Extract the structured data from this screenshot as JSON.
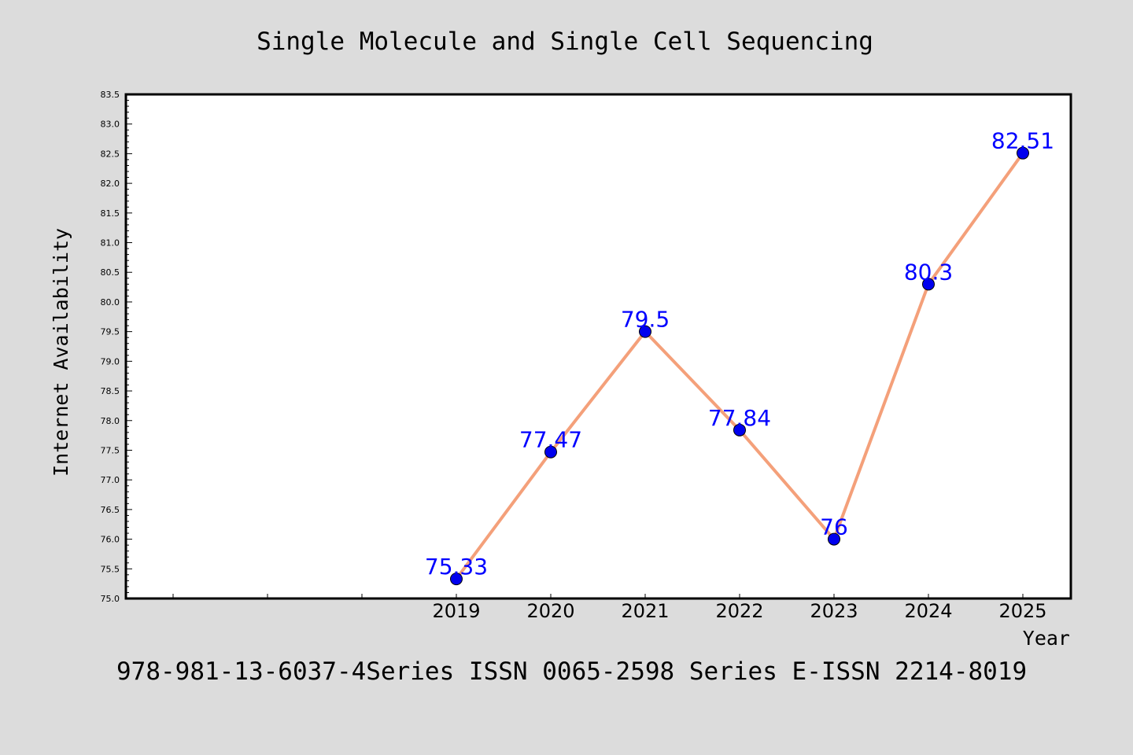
{
  "chart_data": {
    "type": "line",
    "title": "Single Molecule and Single Cell Sequencing",
    "xlabel": "Year",
    "ylabel": "Internet Availability",
    "x": [
      "2019",
      "2020",
      "2021",
      "2022",
      "2023",
      "2024",
      "2025"
    ],
    "series": [
      {
        "values": [
          75.33,
          77.47,
          79.5,
          77.84,
          76,
          80.3,
          82.51
        ],
        "data_labels": [
          "75.33",
          "77.47",
          "79.5",
          "77.84",
          "76",
          "80.3",
          "82.51"
        ],
        "line_color": "#f4a07a",
        "marker_color": "#0000ee"
      }
    ],
    "ylim": [
      75.0,
      83.5
    ],
    "yticks": [
      "75.0",
      "75.5",
      "76.0",
      "76.5",
      "77.0",
      "77.5",
      "78.0",
      "78.5",
      "79.0",
      "79.5",
      "80.0",
      "80.5",
      "81.0",
      "81.5",
      "82.0",
      "82.5",
      "83.0",
      "83.5"
    ],
    "grid": false,
    "label_color": "#0000ff",
    "background": "#dcdcdc",
    "plot_background": "#ffffff"
  },
  "footer": "978-981-13-6037-4Series ISSN 0065-2598 Series E-ISSN 2214-8019"
}
